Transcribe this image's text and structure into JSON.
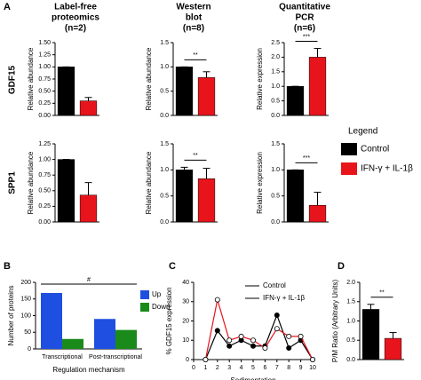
{
  "figure": {
    "panel_labels": [
      "A",
      "B",
      "C",
      "D"
    ],
    "column_titles": [
      [
        "Label-free",
        "proteomics",
        "(n=2)"
      ],
      [
        "Western",
        "blot",
        "(n=8)"
      ],
      [
        "Quantitative",
        "PCR",
        "(n=6)"
      ]
    ],
    "row_labels": [
      "GDF15",
      "SPP1"
    ],
    "legend": {
      "title": "Legend",
      "entries": [
        {
          "name": "Control",
          "color": "#000000"
        },
        {
          "name": "IFN-γ + IL-1β",
          "color": "#e8141b"
        }
      ]
    }
  },
  "chart_data": [
    {
      "type": "bar",
      "values": [
        1.0,
        0.3
      ],
      "errors": [
        0,
        0.07
      ],
      "colors": [
        "#000000",
        "#e8141b"
      ],
      "ylabel": "Relative abundance",
      "ylim": [
        0,
        1.5
      ],
      "yticks": [
        {
          "value": 0,
          "label": "0.00"
        },
        {
          "value": 0.25,
          "label": "0.25"
        },
        {
          "value": 0.5,
          "label": "0.50"
        },
        {
          "value": 0.75,
          "label": "0.75"
        },
        {
          "value": 1,
          "label": "1.00"
        },
        {
          "value": 1.25,
          "label": "1.25"
        },
        {
          "value": 1.5,
          "label": "1.50"
        }
      ]
    },
    {
      "type": "bar",
      "values": [
        1.0,
        0.78
      ],
      "errors": [
        0,
        0.12
      ],
      "colors": [
        "#000000",
        "#e8141b"
      ],
      "ylabel": "Relative abundance",
      "ylim": [
        0,
        1.5
      ],
      "annotation": "**",
      "yticks": [
        {
          "value": 0,
          "label": "0.0"
        },
        {
          "value": 0.5,
          "label": "0.5"
        },
        {
          "value": 1,
          "label": "1.0"
        },
        {
          "value": 1.5,
          "label": "1.5"
        }
      ]
    },
    {
      "type": "bar",
      "values": [
        1.0,
        2.0
      ],
      "errors": [
        0,
        0.3
      ],
      "colors": [
        "#000000",
        "#e8141b"
      ],
      "ylabel": "Relative expression",
      "ylim": [
        0,
        2.5
      ],
      "annotation": "***",
      "yticks": [
        {
          "value": 0,
          "label": "0.0"
        },
        {
          "value": 0.5,
          "label": "0.5"
        },
        {
          "value": 1,
          "label": "1.0"
        },
        {
          "value": 1.5,
          "label": "1.5"
        },
        {
          "value": 2,
          "label": "2.0"
        },
        {
          "value": 2.5,
          "label": "2.5"
        }
      ]
    },
    {
      "type": "bar",
      "values": [
        1.0,
        0.43
      ],
      "errors": [
        0,
        0.2
      ],
      "colors": [
        "#000000",
        "#e8141b"
      ],
      "ylabel": "Relative abundance",
      "ylim": [
        0,
        1.25
      ],
      "yticks": [
        {
          "value": 0,
          "label": "0.00"
        },
        {
          "value": 0.25,
          "label": "0.25"
        },
        {
          "value": 0.5,
          "label": "0.50"
        },
        {
          "value": 0.75,
          "label": "0.75"
        },
        {
          "value": 1,
          "label": "1.00"
        },
        {
          "value": 1.25,
          "label": "1.25"
        }
      ]
    },
    {
      "type": "bar",
      "values": [
        1.0,
        0.83
      ],
      "errors": [
        0.05,
        0.2
      ],
      "colors": [
        "#000000",
        "#e8141b"
      ],
      "ylabel": "Relative abundance",
      "ylim": [
        0,
        1.5
      ],
      "annotation": "**",
      "yticks": [
        {
          "value": 0,
          "label": "0.0"
        },
        {
          "value": 0.5,
          "label": "0.5"
        },
        {
          "value": 1,
          "label": "1.0"
        },
        {
          "value": 1.5,
          "label": "1.5"
        }
      ]
    },
    {
      "type": "bar",
      "values": [
        1.0,
        0.32
      ],
      "errors": [
        0,
        0.25
      ],
      "colors": [
        "#000000",
        "#e8141b"
      ],
      "ylabel": "Relative expression",
      "ylim": [
        0,
        1.5
      ],
      "annotation": "***",
      "yticks": [
        {
          "value": 0,
          "label": "0.0"
        },
        {
          "value": 0.5,
          "label": "0.5"
        },
        {
          "value": 1,
          "label": "1.0"
        },
        {
          "value": 1.5,
          "label": "1.5"
        }
      ]
    },
    {
      "type": "bar",
      "categories": [
        "Transcriptional",
        "Post-transcriptional"
      ],
      "series": [
        {
          "name": "Up",
          "color": "#1f4fe0",
          "values": [
            168,
            90
          ]
        },
        {
          "name": "Down",
          "color": "#1a8a1a",
          "values": [
            30,
            57
          ]
        }
      ],
      "ylabel": "Number of proteins",
      "xlabel": "Regulation mechanism",
      "ylim": [
        0,
        200
      ],
      "yticks": [
        0,
        50,
        100,
        150,
        200
      ],
      "annotation": "#"
    },
    {
      "type": "line",
      "x": [
        1,
        2,
        3,
        4,
        5,
        6,
        7,
        8,
        9,
        10
      ],
      "series": [
        {
          "name": "Control",
          "color": "#000000",
          "marker": "filled",
          "values": [
            0,
            15,
            7,
            10,
            7,
            7,
            23,
            6,
            10,
            0
          ]
        },
        {
          "name": "IFN-γ + IL-1β",
          "color": "#e8141b",
          "marker": "open",
          "values": [
            0,
            31,
            10,
            12,
            10,
            6,
            16,
            12,
            12,
            0
          ]
        }
      ],
      "ylabel": "% GDF15 expression",
      "xlabel": "Sedimentation",
      "xlim": [
        0,
        10
      ],
      "xticks": [
        0,
        1,
        2,
        3,
        4,
        5,
        6,
        7,
        8,
        9,
        10
      ],
      "ylim": [
        0,
        40
      ],
      "yticks": [
        0,
        10,
        20,
        30,
        40
      ]
    },
    {
      "type": "bar",
      "values": [
        1.3,
        0.55
      ],
      "errors": [
        0.13,
        0.15
      ],
      "colors": [
        "#000000",
        "#e8141b"
      ],
      "ylabel": "P/M Ratio (Arbitrary Units)",
      "ylim": [
        0,
        2
      ],
      "annotation": "**",
      "yticks": [
        {
          "value": 0,
          "label": "0.0"
        },
        {
          "value": 0.5,
          "label": "0.5"
        },
        {
          "value": 1,
          "label": "1.0"
        },
        {
          "value": 1.5,
          "label": "1.5"
        },
        {
          "value": 2,
          "label": "2.0"
        }
      ]
    }
  ]
}
